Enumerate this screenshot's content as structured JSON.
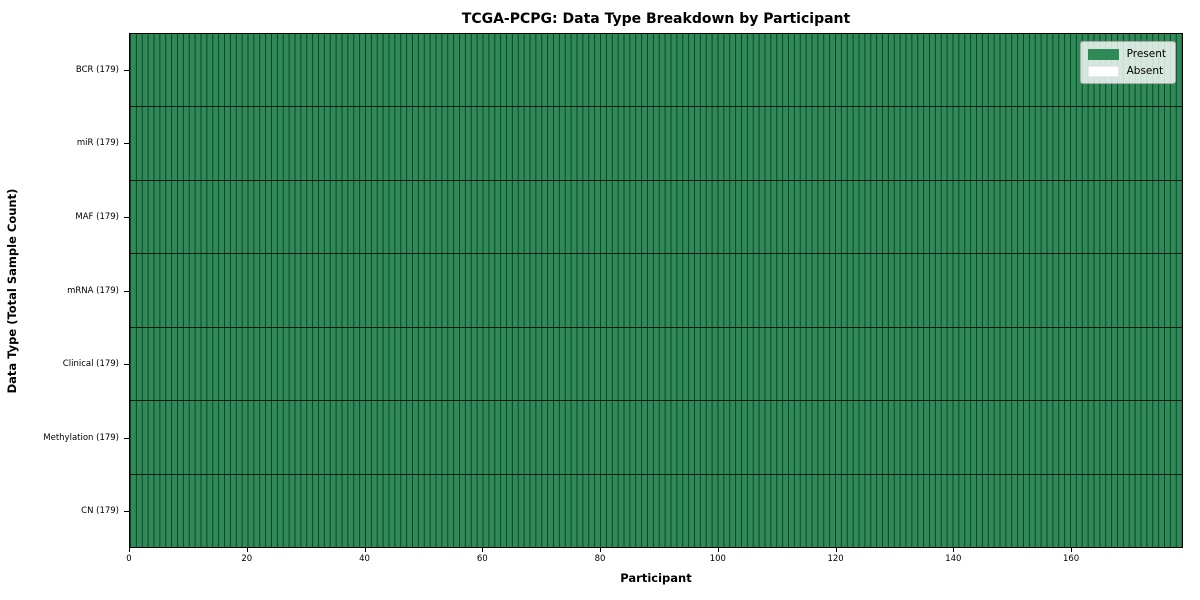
{
  "chart_data": {
    "type": "heatmap",
    "title": "TCGA-PCPG: Data Type Breakdown by Participant",
    "xlabel": "Participant",
    "ylabel": "Data Type (Total Sample Count)",
    "n_participants": 179,
    "x_ticks": [
      0,
      20,
      40,
      60,
      80,
      100,
      120,
      140,
      160
    ],
    "x_range": [
      0,
      179
    ],
    "rows": [
      {
        "label": "BCR (179)",
        "data_type": "BCR",
        "total_samples": 179,
        "present": 179,
        "absent": 0
      },
      {
        "label": "miR (179)",
        "data_type": "miR",
        "total_samples": 179,
        "present": 179,
        "absent": 0
      },
      {
        "label": "MAF (179)",
        "data_type": "MAF",
        "total_samples": 179,
        "present": 179,
        "absent": 0
      },
      {
        "label": "mRNA (179)",
        "data_type": "mRNA",
        "total_samples": 179,
        "present": 179,
        "absent": 0
      },
      {
        "label": "Clinical (179)",
        "data_type": "Clinical",
        "total_samples": 179,
        "present": 179,
        "absent": 0
      },
      {
        "label": "Methylation (179)",
        "data_type": "Methylation",
        "total_samples": 179,
        "present": 179,
        "absent": 0
      },
      {
        "label": "CN (179)",
        "data_type": "CN",
        "total_samples": 179,
        "present": 179,
        "absent": 0
      }
    ],
    "legend": [
      {
        "label": "Present",
        "color": "#2e8b57"
      },
      {
        "label": "Absent",
        "color": "#ffffff"
      }
    ],
    "layout": {
      "legend_position": "upper right",
      "grid": "per-cell borders",
      "colors": {
        "present": "#2e8b57",
        "absent": "#ffffff",
        "cell_edge": "rgba(0,0,0,0.55)",
        "row_divider": "rgba(0,0,0,0.8)",
        "spine": "#000000"
      }
    }
  }
}
